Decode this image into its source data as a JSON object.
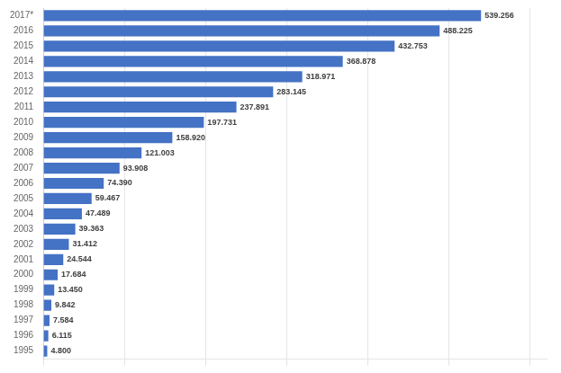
{
  "chart_data": {
    "type": "bar",
    "orientation": "horizontal",
    "categories": [
      "2017*",
      "2016",
      "2015",
      "2014",
      "2013",
      "2012",
      "2011",
      "2010",
      "2009",
      "2008",
      "2007",
      "2006",
      "2005",
      "2004",
      "2003",
      "2002",
      "2001",
      "2000",
      "1999",
      "1998",
      "1997",
      "1996",
      "1995"
    ],
    "values": [
      539.256,
      488.225,
      432.753,
      368.878,
      318.971,
      283.145,
      237.891,
      197.731,
      158.92,
      121.003,
      93.908,
      74.39,
      59.467,
      47.489,
      39.363,
      31.412,
      24.544,
      17.684,
      13.45,
      9.842,
      7.584,
      6.115,
      4.8
    ],
    "value_labels": [
      "539.256",
      "488.225",
      "432.753",
      "368.878",
      "318.971",
      "283.145",
      "237.891",
      "197.731",
      "158.920",
      "121.003",
      "93.908",
      "74.390",
      "59.467",
      "47.489",
      "39.363",
      "31.412",
      "24.544",
      "17.684",
      "13.450",
      "9.842",
      "7.584",
      "6.115",
      "4.800"
    ],
    "color": "#4472c4",
    "xlim": [
      0,
      620
    ],
    "xticks": [
      0,
      100,
      200,
      300,
      400,
      500,
      600
    ],
    "grid": true,
    "data_labels": true,
    "tick_labels": "y"
  }
}
